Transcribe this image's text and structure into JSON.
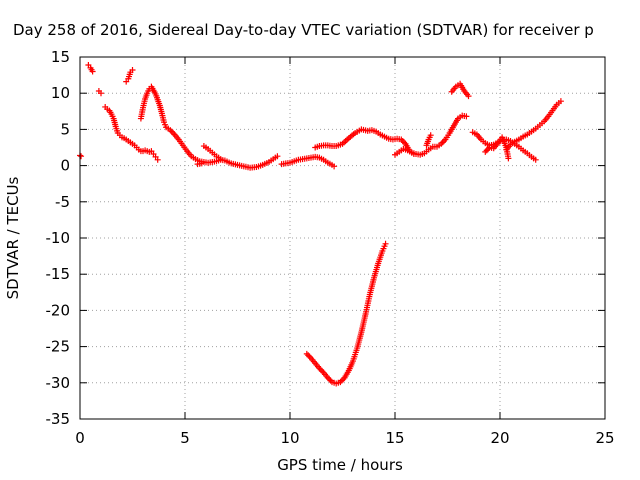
{
  "chart_data": {
    "type": "scatter",
    "title": "Day 258 of 2016, Sidereal Day-to-day VTEC variation (SDTVAR) for receiver p",
    "xlabel": "GPS time / hours",
    "ylabel": "SDTVAR / TECUs",
    "xlim": [
      0,
      25
    ],
    "ylim": [
      -35,
      15
    ],
    "xticks": [
      "0",
      "5",
      "10",
      "15",
      "20",
      "25"
    ],
    "yticks": [
      "15",
      "10",
      "5",
      "0",
      "-5",
      "-10",
      "-15",
      "-20",
      "-25",
      "-30",
      "-35"
    ],
    "grid": true,
    "marker": "+",
    "color": "#ff0000",
    "segments": [
      [
        [
          0.0,
          1.4
        ],
        [
          0.05,
          1.3
        ]
      ],
      [
        [
          0.4,
          13.9
        ],
        [
          0.5,
          13.5
        ],
        [
          0.6,
          13.0
        ]
      ],
      [
        [
          0.9,
          10.3
        ],
        [
          1.0,
          10.0
        ]
      ],
      [
        [
          1.2,
          8.1
        ],
        [
          1.3,
          7.8
        ],
        [
          1.4,
          7.6
        ],
        [
          1.5,
          7.1
        ],
        [
          1.6,
          6.5
        ],
        [
          1.7,
          5.4
        ],
        [
          1.8,
          4.5
        ],
        [
          1.9,
          4.2
        ],
        [
          2.0,
          3.9
        ],
        [
          2.1,
          3.8
        ],
        [
          2.2,
          3.6
        ],
        [
          2.3,
          3.4
        ],
        [
          2.4,
          3.2
        ],
        [
          2.5,
          3.0
        ],
        [
          2.6,
          2.8
        ],
        [
          2.7,
          2.5
        ],
        [
          2.8,
          2.2
        ],
        [
          2.9,
          2.0
        ],
        [
          3.0,
          2.0
        ],
        [
          3.1,
          2.1
        ],
        [
          3.2,
          2.0
        ],
        [
          3.3,
          1.9
        ],
        [
          3.4,
          2.0
        ],
        [
          3.5,
          1.6
        ],
        [
          3.6,
          1.2
        ],
        [
          3.7,
          0.8
        ]
      ],
      [
        [
          2.2,
          11.6
        ],
        [
          2.3,
          12.0
        ],
        [
          2.4,
          12.9
        ],
        [
          2.5,
          13.2
        ]
      ],
      [
        [
          2.9,
          6.5
        ],
        [
          3.0,
          8.0
        ],
        [
          3.1,
          9.2
        ],
        [
          3.2,
          10.0
        ],
        [
          3.3,
          10.6
        ],
        [
          3.4,
          10.9
        ],
        [
          3.5,
          10.4
        ],
        [
          3.6,
          9.9
        ],
        [
          3.7,
          9.1
        ],
        [
          3.8,
          8.3
        ],
        [
          3.9,
          7.2
        ],
        [
          4.0,
          6.0
        ],
        [
          4.1,
          5.3
        ],
        [
          4.3,
          4.9
        ],
        [
          4.5,
          4.3
        ],
        [
          4.7,
          3.6
        ],
        [
          4.9,
          2.8
        ],
        [
          5.1,
          2.0
        ],
        [
          5.3,
          1.3
        ],
        [
          5.5,
          0.9
        ],
        [
          5.7,
          0.6
        ],
        [
          5.9,
          0.5
        ],
        [
          6.1,
          0.4
        ],
        [
          6.3,
          0.5
        ],
        [
          6.5,
          0.6
        ],
        [
          6.7,
          0.8
        ],
        [
          6.9,
          0.7
        ],
        [
          7.2,
          0.3
        ],
        [
          7.5,
          0.1
        ],
        [
          7.8,
          -0.1
        ],
        [
          8.1,
          -0.3
        ],
        [
          8.4,
          -0.2
        ],
        [
          8.7,
          0.1
        ],
        [
          9.0,
          0.5
        ],
        [
          9.2,
          0.9
        ],
        [
          9.4,
          1.3
        ]
      ],
      [
        [
          5.6,
          0.2
        ],
        [
          5.8,
          0.3
        ]
      ],
      [
        [
          5.9,
          2.7
        ],
        [
          6.1,
          2.3
        ],
        [
          6.3,
          1.8
        ],
        [
          6.5,
          1.3
        ],
        [
          6.7,
          0.9
        ]
      ],
      [
        [
          9.6,
          0.2
        ],
        [
          9.8,
          0.3
        ],
        [
          10.0,
          0.4
        ],
        [
          10.2,
          0.6
        ],
        [
          10.4,
          0.8
        ],
        [
          10.6,
          0.9
        ],
        [
          10.8,
          1.0
        ],
        [
          11.0,
          1.1
        ],
        [
          11.2,
          1.2
        ],
        [
          11.4,
          1.1
        ],
        [
          11.6,
          0.8
        ],
        [
          11.8,
          0.4
        ],
        [
          12.0,
          0.1
        ],
        [
          12.1,
          -0.1
        ]
      ],
      [
        [
          11.2,
          2.5
        ],
        [
          11.4,
          2.7
        ],
        [
          11.6,
          2.8
        ],
        [
          11.8,
          2.8
        ],
        [
          12.0,
          2.7
        ],
        [
          12.2,
          2.7
        ],
        [
          12.5,
          3.0
        ],
        [
          12.8,
          3.8
        ],
        [
          13.1,
          4.5
        ],
        [
          13.4,
          5.0
        ],
        [
          13.7,
          4.8
        ],
        [
          13.9,
          4.9
        ],
        [
          14.1,
          4.7
        ],
        [
          14.3,
          4.3
        ],
        [
          14.5,
          4.0
        ],
        [
          14.7,
          3.7
        ],
        [
          14.9,
          3.6
        ],
        [
          15.1,
          3.7
        ],
        [
          15.3,
          3.6
        ],
        [
          15.5,
          3.0
        ],
        [
          15.7,
          2.0
        ],
        [
          15.9,
          1.6
        ]
      ],
      [
        [
          15.0,
          1.5
        ],
        [
          15.2,
          1.9
        ],
        [
          15.4,
          2.3
        ],
        [
          15.6,
          2.1
        ],
        [
          15.8,
          1.8
        ],
        [
          16.0,
          1.6
        ],
        [
          16.2,
          1.5
        ],
        [
          16.4,
          1.7
        ],
        [
          16.6,
          2.2
        ],
        [
          16.8,
          2.6
        ],
        [
          17.0,
          2.6
        ],
        [
          17.2,
          3.0
        ],
        [
          17.4,
          3.6
        ],
        [
          17.6,
          4.5
        ],
        [
          17.8,
          5.5
        ],
        [
          18.0,
          6.5
        ],
        [
          18.2,
          6.9
        ],
        [
          18.4,
          6.8
        ]
      ],
      [
        [
          16.5,
          2.8
        ],
        [
          16.6,
          3.6
        ],
        [
          16.7,
          4.2
        ]
      ],
      [
        [
          17.7,
          10.2
        ],
        [
          17.9,
          10.9
        ],
        [
          18.1,
          11.3
        ],
        [
          18.3,
          10.3
        ],
        [
          18.5,
          9.6
        ]
      ],
      [
        [
          18.7,
          4.6
        ],
        [
          18.9,
          4.3
        ],
        [
          19.1,
          3.6
        ],
        [
          19.3,
          3.1
        ],
        [
          19.5,
          2.8
        ],
        [
          19.7,
          2.9
        ],
        [
          19.9,
          3.2
        ],
        [
          20.1,
          3.5
        ],
        [
          20.3,
          3.6
        ],
        [
          20.5,
          3.4
        ],
        [
          20.7,
          3.0
        ],
        [
          20.9,
          2.6
        ],
        [
          21.1,
          2.1
        ],
        [
          21.3,
          1.7
        ],
        [
          21.5,
          1.2
        ],
        [
          21.7,
          0.8
        ]
      ],
      [
        [
          19.3,
          1.9
        ],
        [
          19.5,
          2.5
        ],
        [
          19.7,
          2.4
        ],
        [
          19.9,
          3.1
        ],
        [
          20.1,
          3.9
        ],
        [
          20.3,
          2.5
        ],
        [
          20.4,
          1.0
        ]
      ],
      [
        [
          20.3,
          2.2
        ],
        [
          20.5,
          2.9
        ],
        [
          20.7,
          3.3
        ],
        [
          20.9,
          3.6
        ],
        [
          21.1,
          4.0
        ],
        [
          21.3,
          4.3
        ],
        [
          21.5,
          4.7
        ],
        [
          21.7,
          5.1
        ],
        [
          21.9,
          5.6
        ],
        [
          22.1,
          6.1
        ],
        [
          22.3,
          6.8
        ],
        [
          22.5,
          7.6
        ],
        [
          22.7,
          8.4
        ],
        [
          22.9,
          8.9
        ]
      ],
      [
        [
          10.8,
          -26.0
        ],
        [
          11.0,
          -26.6
        ],
        [
          11.2,
          -27.3
        ],
        [
          11.4,
          -28.0
        ],
        [
          11.6,
          -28.6
        ],
        [
          11.8,
          -29.3
        ],
        [
          12.0,
          -29.9
        ],
        [
          12.2,
          -30.1
        ],
        [
          12.4,
          -29.9
        ],
        [
          12.6,
          -29.3
        ],
        [
          12.8,
          -28.3
        ],
        [
          13.0,
          -27.0
        ],
        [
          13.2,
          -25.2
        ],
        [
          13.4,
          -23.0
        ],
        [
          13.6,
          -20.5
        ],
        [
          13.8,
          -17.8
        ],
        [
          14.0,
          -15.5
        ],
        [
          14.2,
          -13.5
        ],
        [
          14.4,
          -11.8
        ],
        [
          14.55,
          -10.8
        ]
      ]
    ]
  }
}
